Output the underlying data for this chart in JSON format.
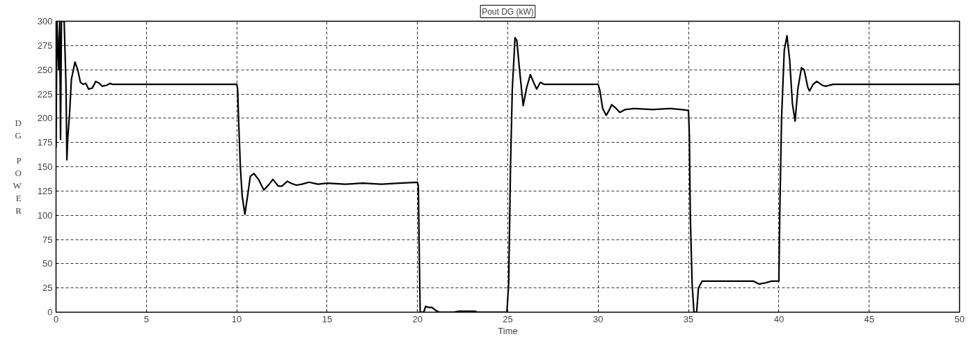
{
  "chart_data": {
    "type": "line",
    "title": "Pout DG (kW)",
    "xlabel": "Time",
    "ylabel": "DG POWER",
    "xlim": [
      0,
      50
    ],
    "ylim": [
      0,
      300
    ],
    "xticks": [
      0,
      5,
      10,
      15,
      20,
      25,
      30,
      35,
      40,
      45,
      50
    ],
    "yticks": [
      0,
      25,
      50,
      75,
      100,
      125,
      150,
      175,
      200,
      225,
      250,
      275,
      300
    ],
    "grid": true,
    "line_style": "solid",
    "marker": "none",
    "series": [
      {
        "color": "#000000",
        "x": [
          0,
          0.05,
          0.15,
          0.2,
          0.25,
          0.3,
          0.45,
          0.55,
          0.6,
          0.65,
          0.75,
          0.85,
          1.05,
          1.2,
          1.35,
          1.5,
          1.65,
          1.8,
          2.0,
          2.2,
          2.4,
          2.55,
          2.8,
          3.0,
          3.1,
          10,
          10.05,
          10.1,
          10.2,
          10.3,
          10.45,
          10.6,
          10.75,
          10.95,
          11.2,
          11.5,
          11.8,
          12.0,
          12.3,
          12.5,
          12.8,
          13.0,
          13.3,
          13.6,
          14.0,
          14.5,
          15,
          16,
          17,
          18,
          19,
          20,
          20.05,
          20.1,
          20.15,
          20.35,
          20.45,
          20.6,
          20.8,
          21.0,
          21.2,
          22,
          22.3,
          23.2,
          23.3,
          24.95,
          25.05,
          25.15,
          25.25,
          25.4,
          25.5,
          25.65,
          25.85,
          26.05,
          26.25,
          26.45,
          26.6,
          26.8,
          27,
          30,
          30.1,
          30.25,
          30.45,
          30.6,
          30.75,
          31.0,
          31.2,
          31.5,
          32,
          33,
          34,
          34.6,
          35,
          35.05,
          35.1,
          35.2,
          35.3,
          35.45,
          35.55,
          35.75,
          36.5,
          38,
          38.6,
          38.9,
          39.2,
          39.6,
          40,
          40.05,
          40.15,
          40.3,
          40.45,
          40.6,
          40.75,
          40.9,
          41.05,
          41.25,
          41.4,
          41.6,
          41.7,
          41.9,
          42.1,
          42.4,
          42.6,
          43,
          50
        ],
        "values": [
          170,
          300,
          250,
          300,
          178,
          300,
          300,
          235,
          157,
          180,
          205,
          240,
          258,
          250,
          237,
          235,
          236,
          230,
          231,
          238,
          236,
          233,
          234,
          236,
          235,
          235,
          230,
          200,
          150,
          120,
          101,
          120,
          140,
          143,
          137,
          126,
          132,
          137,
          130,
          130,
          135,
          133,
          131,
          132,
          134,
          132,
          133,
          132,
          133,
          132,
          133,
          134,
          130,
          60,
          0,
          0,
          6,
          5,
          5,
          2,
          0,
          0,
          1,
          1,
          0,
          0,
          30,
          150,
          230,
          283,
          280,
          250,
          213,
          232,
          245,
          236,
          230,
          237,
          235,
          235,
          228,
          210,
          203,
          208,
          214,
          210,
          206,
          209,
          210,
          209,
          210,
          209,
          208,
          180,
          100,
          30,
          0,
          0,
          25,
          32,
          32,
          32,
          32,
          29,
          30,
          32,
          32,
          100,
          200,
          270,
          285,
          260,
          215,
          197,
          230,
          252,
          250,
          232,
          228,
          235,
          238,
          234,
          233,
          235,
          235
        ]
      }
    ]
  }
}
